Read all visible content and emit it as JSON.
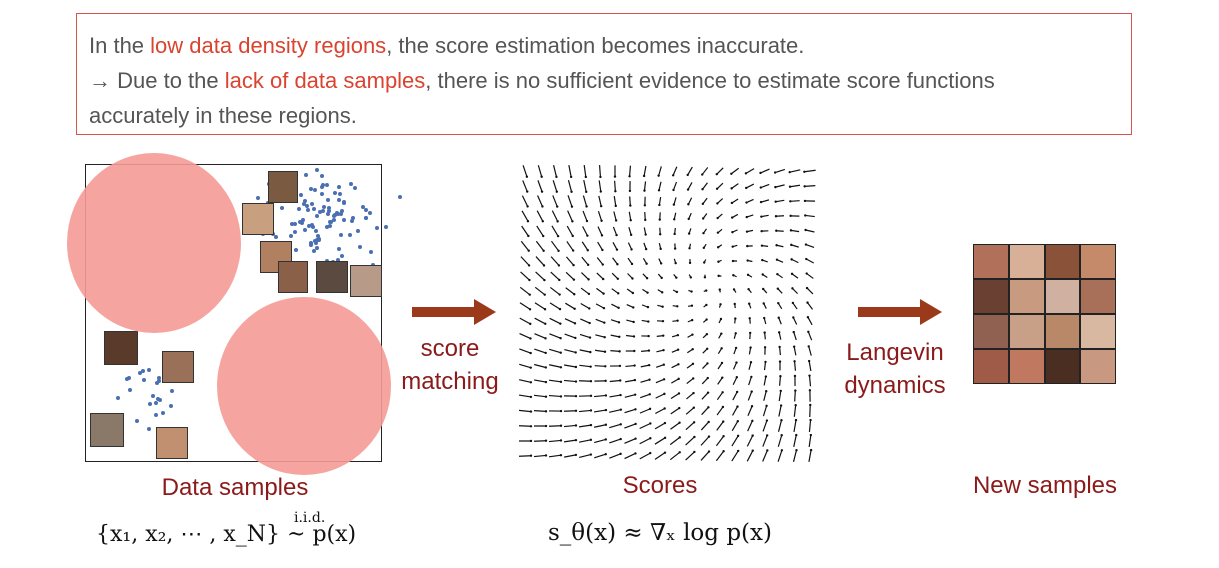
{
  "callout": {
    "line1_pre": "In the ",
    "line1_hl": "low data density regions",
    "line1_post": ", the score estimation becomes inaccurate.",
    "line2_pre": "→ Due to the ",
    "line2_hl": "lack of data samples",
    "line2_post": ", there is no sufficient evidence to estimate score functions",
    "line3": "accurately in these regions."
  },
  "steps": {
    "score_matching_1": "score",
    "score_matching_2": "matching",
    "langevin_1": "Langevin",
    "langevin_2": "dynamics"
  },
  "captions": {
    "data": "Data samples",
    "scores": "Scores",
    "new": "New samples"
  },
  "math": {
    "data_formula": "{x₁, x₂, ⋯ , x_N}  ~  p(x)",
    "iid": "i.i.d.",
    "score_formula": "s_θ(x) ≈ ∇ₓ log p(x)"
  },
  "colors": {
    "highlight": "#d9432f",
    "circle": "#f59a96",
    "arrow": "#9b3a1a",
    "caption": "#8b1a1a",
    "dots": "#4a6fb3"
  }
}
